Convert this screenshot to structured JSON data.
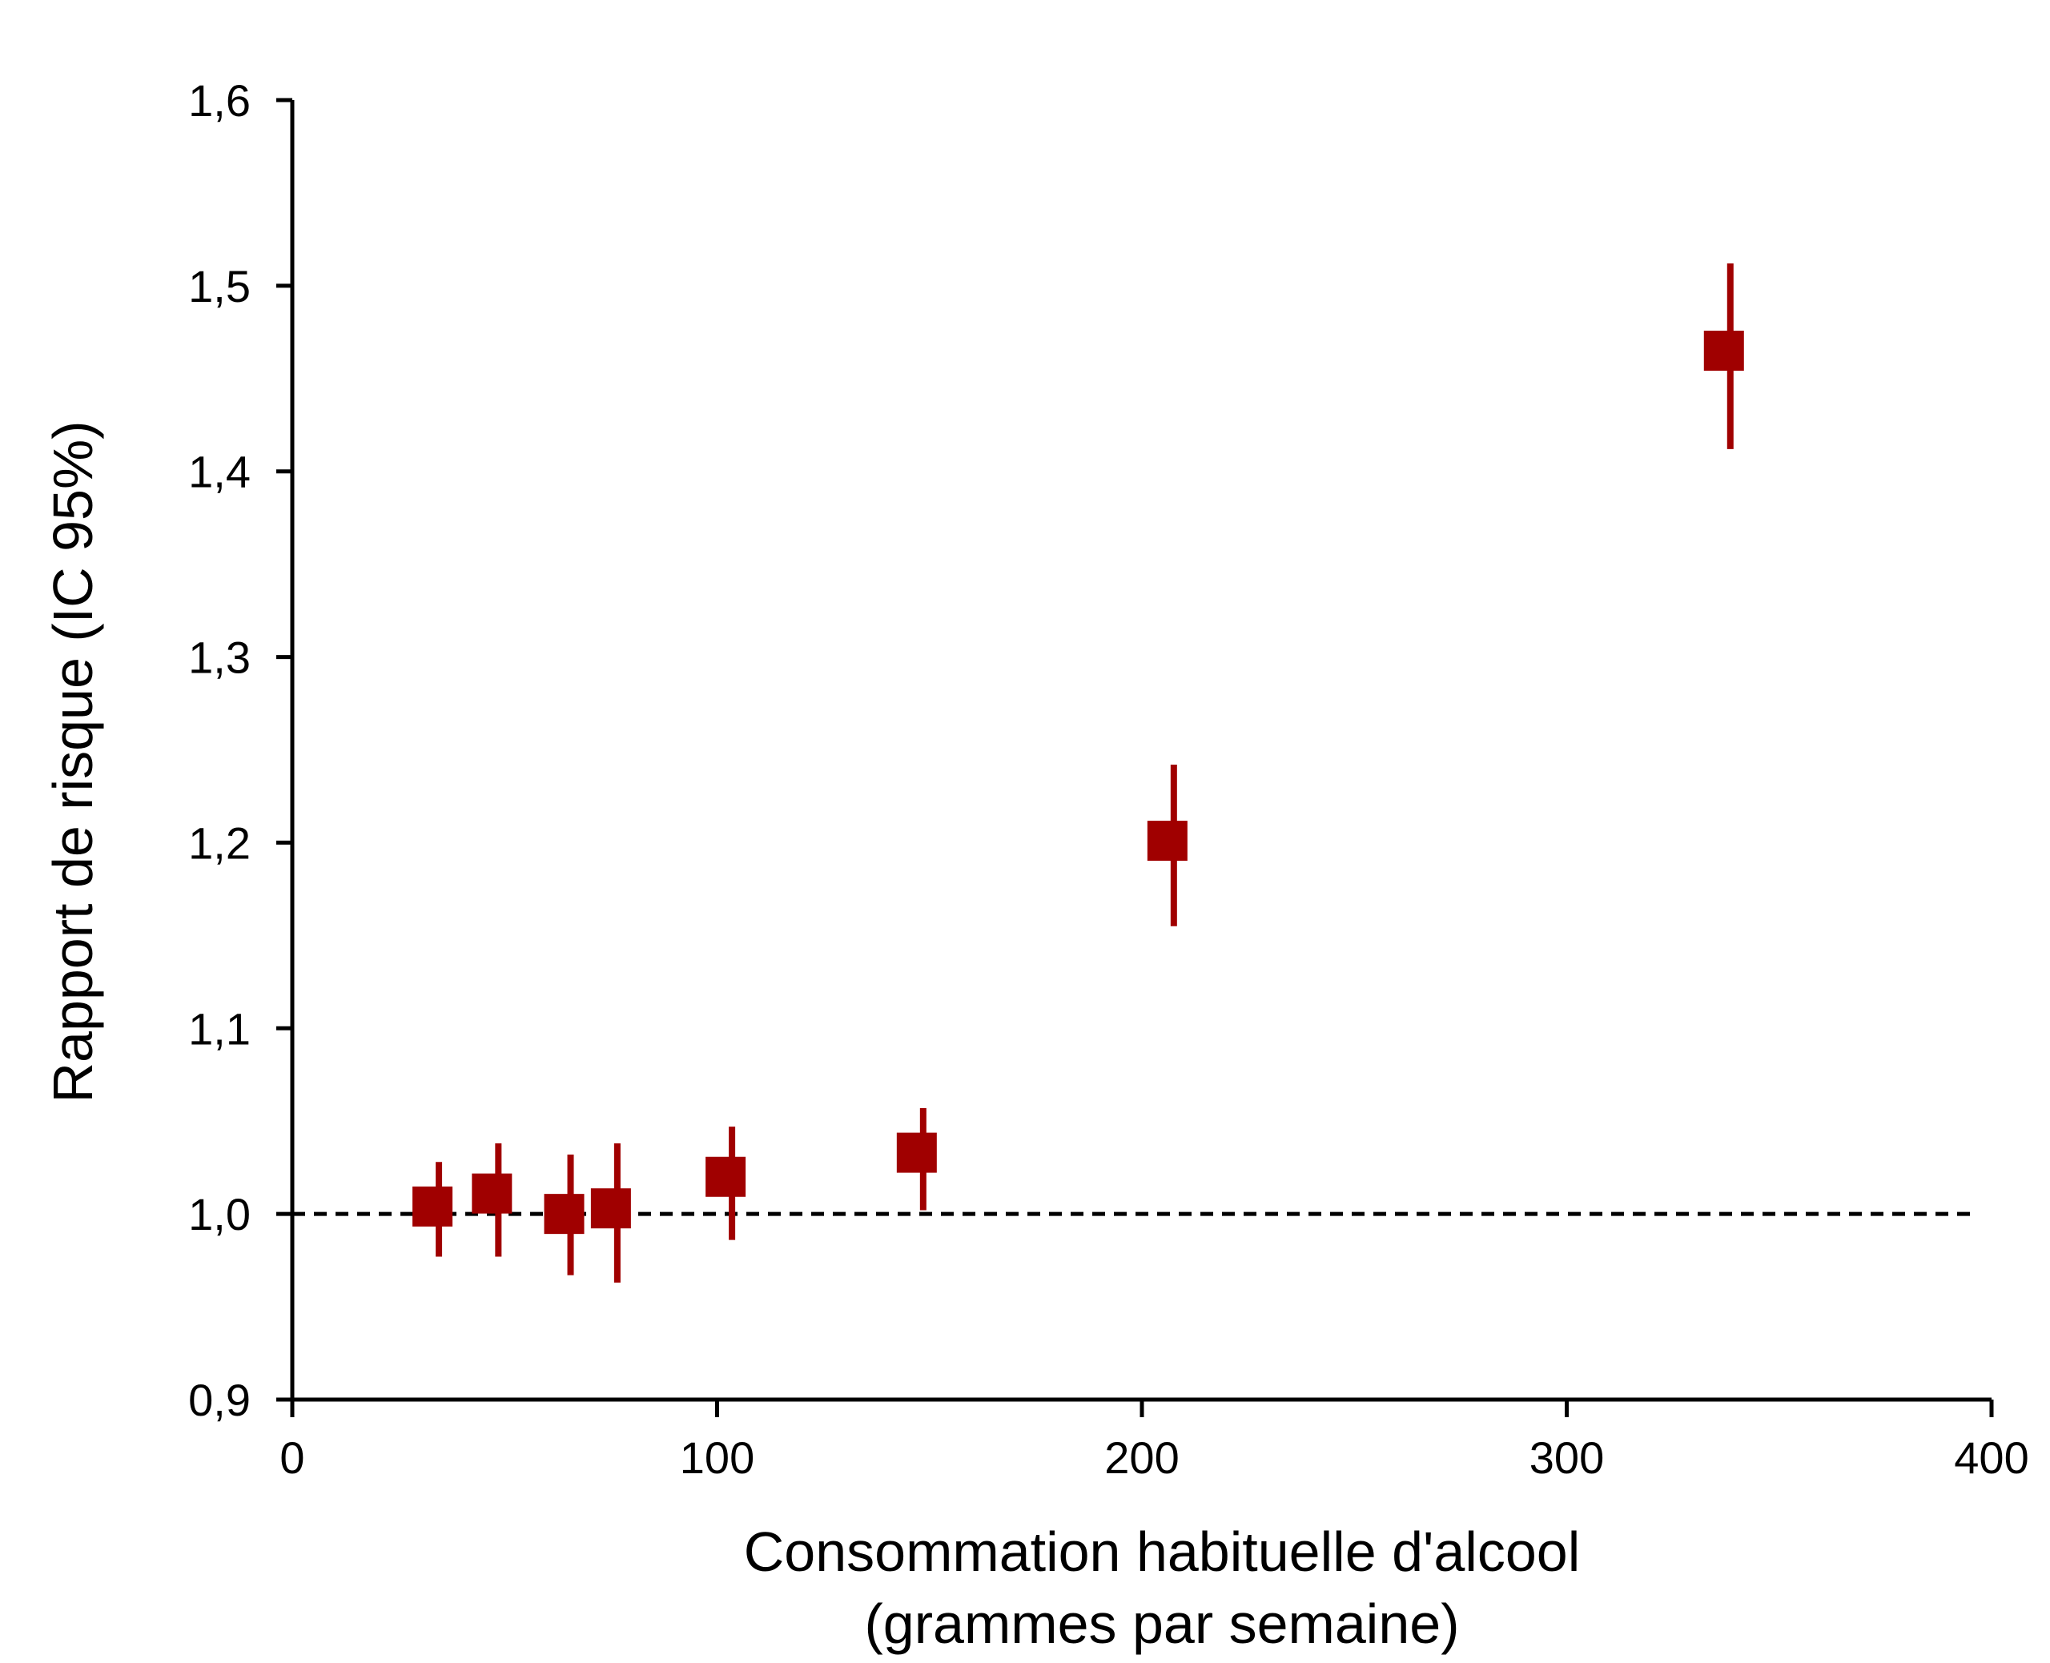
{
  "chart_data": {
    "type": "scatter",
    "xlabel_lines": [
      "Consommation habituelle d'alcool",
      "(grammes par semaine)"
    ],
    "ylabel": "Rapport de risque (IC 95%)",
    "xlim": [
      0,
      400
    ],
    "ylim": [
      0.9,
      1.6
    ],
    "x_ticks": [
      0,
      100,
      200,
      300,
      400
    ],
    "x_tick_labels": [
      "0",
      "100",
      "200",
      "300",
      "400"
    ],
    "y_ticks": [
      0.9,
      1.0,
      1.1,
      1.2,
      1.3,
      1.4,
      1.5,
      1.6
    ],
    "y_tick_labels": [
      "0,9",
      "1,0",
      "1,1",
      "1,2",
      "1,3",
      "1,4",
      "1,5",
      "1,6"
    ],
    "grid": false,
    "reference_line": {
      "y": 1.0,
      "style": "dashed",
      "color": "#000000"
    },
    "marker_color": "#a00000",
    "points": [
      {
        "x": 33,
        "y": 1.004,
        "ci_low": 0.977,
        "ci_high": 1.028
      },
      {
        "x": 47,
        "y": 1.011,
        "ci_low": 0.977,
        "ci_high": 1.038
      },
      {
        "x": 64,
        "y": 1.0,
        "ci_low": 0.967,
        "ci_high": 1.032
      },
      {
        "x": 75,
        "y": 1.003,
        "ci_low": 0.963,
        "ci_high": 1.038
      },
      {
        "x": 102,
        "y": 1.02,
        "ci_low": 0.986,
        "ci_high": 1.047
      },
      {
        "x": 147,
        "y": 1.033,
        "ci_low": 1.002,
        "ci_high": 1.057
      },
      {
        "x": 206,
        "y": 1.201,
        "ci_low": 1.155,
        "ci_high": 1.242
      },
      {
        "x": 337,
        "y": 1.465,
        "ci_low": 1.412,
        "ci_high": 1.512
      }
    ]
  }
}
